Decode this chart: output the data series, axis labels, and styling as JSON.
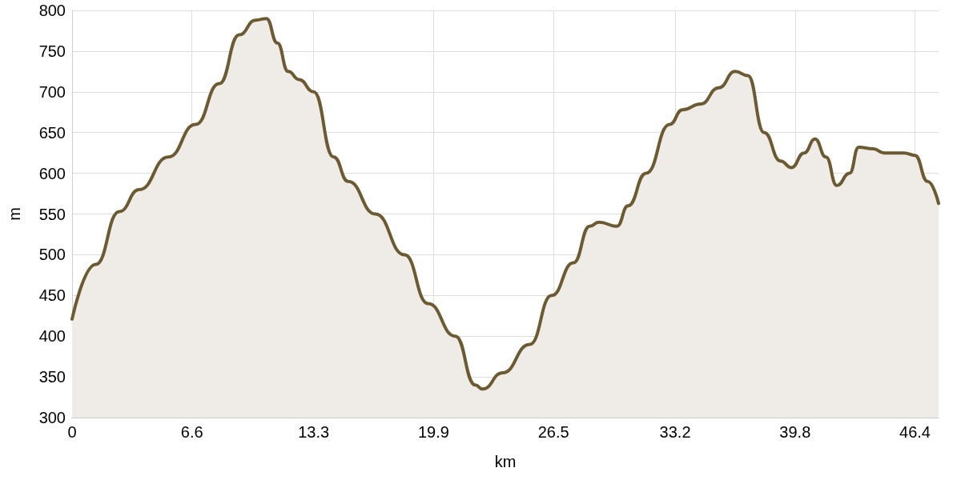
{
  "chart_data": {
    "type": "area",
    "xlabel": "km",
    "ylabel": "m",
    "x": [
      0,
      1.3,
      2.6,
      3.7,
      5.3,
      6.8,
      8.1,
      9.2,
      10.1,
      10.7,
      11.3,
      11.9,
      12.5,
      13.3,
      14.4,
      15.2,
      16.7,
      18.3,
      19.6,
      21.1,
      22.2,
      22.6,
      23.7,
      25.2,
      26.4,
      27.6,
      28.5,
      29.0,
      30.0,
      30.6,
      31.6,
      32.9,
      33.6,
      34.6,
      35.6,
      36.5,
      37.2,
      38.1,
      39.0,
      39.6,
      40.3,
      40.9,
      41.5,
      42.1,
      42.8,
      43.3,
      44.1,
      44.7,
      45.8,
      46.4,
      47.1,
      47.7
    ],
    "series": [
      {
        "color": "#6b5a32",
        "values": [
          421,
          488,
          553,
          580,
          620,
          660,
          710,
          770,
          788,
          790,
          760,
          725,
          715,
          700,
          620,
          590,
          550,
          500,
          440,
          400,
          340,
          335,
          355,
          390,
          450,
          490,
          535,
          540,
          535,
          560,
          600,
          660,
          678,
          685,
          705,
          725,
          720,
          650,
          615,
          607,
          625,
          642,
          620,
          585,
          600,
          632,
          630,
          625,
          625,
          622,
          590,
          563
        ]
      }
    ],
    "xlim": [
      0,
      47.7
    ],
    "xticks": [
      0,
      6.6,
      13.3,
      19.9,
      26.5,
      33.2,
      39.8,
      46.4
    ],
    "ylim": [
      300,
      800
    ],
    "yticks": [
      300,
      350,
      400,
      450,
      500,
      550,
      600,
      650,
      700,
      750,
      800
    ],
    "grid": true,
    "marker": "none",
    "line_style": "solid"
  }
}
